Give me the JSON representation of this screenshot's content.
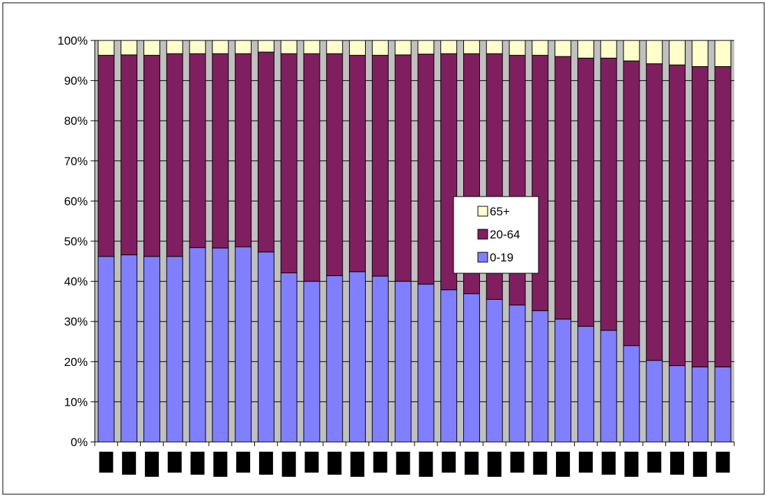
{
  "chart_data": {
    "type": "bar",
    "stacked": true,
    "percent_stacked": true,
    "categories": [
      "",
      "",
      "",
      "",
      "",
      "",
      "",
      "",
      "",
      "",
      "",
      "",
      "",
      "",
      "",
      "",
      "",
      "",
      "",
      "",
      "",
      "",
      "",
      "",
      "",
      "",
      "",
      ""
    ],
    "series": [
      {
        "name": "0-19",
        "color": "#8080ff",
        "values": [
          46.2,
          46.6,
          46.2,
          46.2,
          48.4,
          48.3,
          48.6,
          47.3,
          42.1,
          40.0,
          41.4,
          42.4,
          41.3,
          40.0,
          39.3,
          37.9,
          36.9,
          35.5,
          34.1,
          32.7,
          30.6,
          28.8,
          27.8,
          24.0,
          20.3,
          19.0,
          18.7,
          18.7
        ]
      },
      {
        "name": "20-64",
        "color": "#7f1f5f",
        "values": [
          50.1,
          49.8,
          50.1,
          50.5,
          48.3,
          48.4,
          48.1,
          49.8,
          54.6,
          56.7,
          55.3,
          53.9,
          55.0,
          56.4,
          57.3,
          58.8,
          59.8,
          61.2,
          62.2,
          63.6,
          65.4,
          66.8,
          67.8,
          70.9,
          73.9,
          74.9,
          74.8,
          74.8
        ]
      },
      {
        "name": "65+",
        "color": "#ffffcc",
        "values": [
          3.7,
          3.6,
          3.7,
          3.3,
          3.3,
          3.3,
          3.3,
          2.9,
          3.3,
          3.3,
          3.3,
          3.7,
          3.7,
          3.6,
          3.4,
          3.3,
          3.3,
          3.3,
          3.7,
          3.7,
          4.0,
          4.4,
          4.4,
          5.1,
          5.8,
          6.1,
          6.5,
          6.5
        ]
      }
    ],
    "y_ticks": [
      "0%",
      "10%",
      "20%",
      "30%",
      "40%",
      "50%",
      "60%",
      "70%",
      "80%",
      "90%",
      "100%"
    ],
    "ylim": [
      0,
      100
    ],
    "grid": true,
    "legend_position": "center-right",
    "legend_order": [
      "65+",
      "20-64",
      "0-19"
    ],
    "plot_background": "#c0c0c0",
    "category_label_blocks": true
  }
}
